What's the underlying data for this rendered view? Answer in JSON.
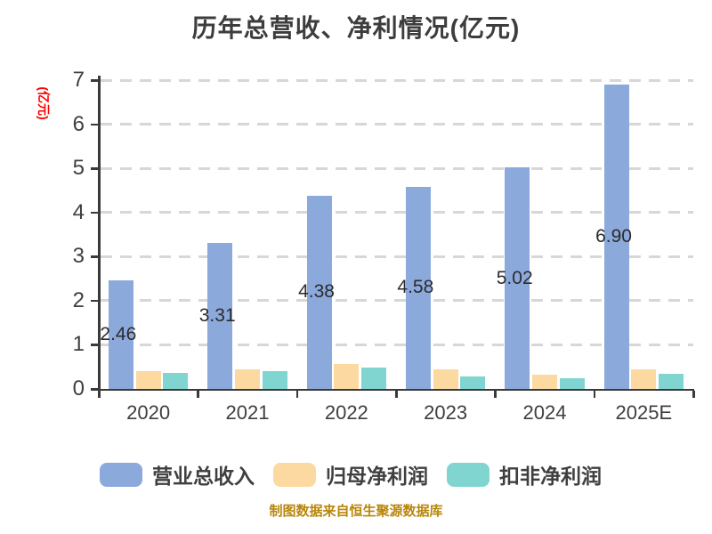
{
  "header": {
    "title": "历年总营收、净利情况(亿元)"
  },
  "axes": {
    "y_unit_label": "(亿元)",
    "y_tick_labels": [
      "0",
      "1",
      "2",
      "3",
      "4",
      "5",
      "6",
      "7"
    ],
    "x_tick_labels": [
      "2020",
      "2021",
      "2022",
      "2023",
      "2024",
      "2025E"
    ]
  },
  "chart_data": {
    "type": "bar",
    "title": "历年总营收、净利情况(亿元)",
    "categories": [
      "2020",
      "2021",
      "2022",
      "2023",
      "2024",
      "2025E"
    ],
    "series": [
      {
        "key": "total-operating-revenue",
        "name": "营业总收入",
        "color": "#8CA9DB",
        "values": [
          2.46,
          3.31,
          4.38,
          4.58,
          5.02,
          6.9
        ],
        "labels": [
          "2.46",
          "3.31",
          "4.38",
          "4.58",
          "5.02",
          "6.90"
        ]
      },
      {
        "key": "net-profit-attributable",
        "name": "归母净利润",
        "color": "#FCD9A0",
        "values": [
          0.4,
          0.44,
          0.57,
          0.44,
          0.32,
          0.45
        ]
      },
      {
        "key": "non-gaap-net-profit",
        "name": "扣非净利润",
        "color": "#80D5D1",
        "values": [
          0.37,
          0.4,
          0.49,
          0.29,
          0.25,
          0.34
        ]
      }
    ],
    "ylim": [
      0,
      7
    ],
    "yticks": [
      0,
      1,
      2,
      3,
      4,
      5,
      6,
      7
    ],
    "grid": "horizontal-dashed",
    "legend_position": "bottom"
  },
  "footer": {
    "caption": "制图数据来自恒生聚源数据库"
  },
  "colors": {
    "grid": "#d7d7d7",
    "axis": "#3a3a3a",
    "title_text": "#3d3d3d",
    "tick_text": "#3f3f3f",
    "value_label_text": "#2b2b2b",
    "legend_text": "#3f3f3f",
    "unit_label": "#ff0000",
    "caption": "#b8860b",
    "background": "#ffffff"
  }
}
